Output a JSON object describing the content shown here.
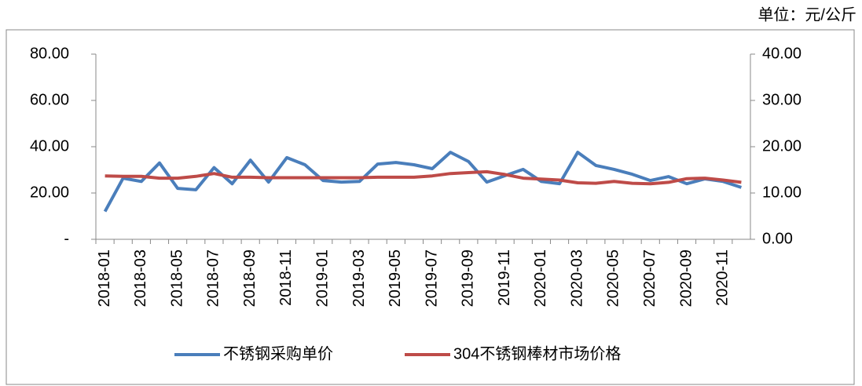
{
  "chart_data": {
    "type": "line",
    "unit_note": "单位：元/公斤",
    "categories": [
      "2018-01",
      null,
      "2018-03",
      null,
      "2018-05",
      null,
      "2018-07",
      null,
      "2018-09",
      null,
      "2018-11",
      null,
      "2019-01",
      null,
      "2019-03",
      null,
      "2019-05",
      null,
      "2019-07",
      null,
      "2019-09",
      null,
      "2019-11",
      null,
      "2020-01",
      null,
      "2020-03",
      null,
      "2020-05",
      null,
      "2020-07",
      null,
      "2020-09",
      null,
      "2020-11",
      null
    ],
    "series": [
      {
        "name": "不锈钢采购单价",
        "color": "#4a7ebb",
        "axis": "y",
        "values": [
          12,
          26.4,
          25,
          33,
          22,
          21.4,
          31,
          24,
          34.2,
          24.7,
          35.3,
          32.2,
          25.4,
          24.7,
          25,
          32.5,
          33.2,
          32.2,
          30.5,
          37.6,
          33.6,
          24.7,
          27.5,
          30.2,
          25,
          24,
          37.6,
          31.9,
          30.2,
          28.1,
          25.4,
          27.1,
          24,
          26.1,
          25,
          22.4
        ]
      },
      {
        "name": "304不锈钢棒材市场价格",
        "color": "#be4b48",
        "axis": "y2",
        "values": [
          13.7,
          13.6,
          13.6,
          13.2,
          13.2,
          13.6,
          14.2,
          13.4,
          13.4,
          13.3,
          13.3,
          13.3,
          13.3,
          13.3,
          13.3,
          13.4,
          13.4,
          13.4,
          13.7,
          14.2,
          14.4,
          14.6,
          14.0,
          13.2,
          13.0,
          12.8,
          12.2,
          12.1,
          12.5,
          12.1,
          12.0,
          12.3,
          13.1,
          13.2,
          12.8,
          12.3
        ]
      }
    ],
    "ylim": [
      0,
      80
    ],
    "yticks": [
      {
        "value": 0,
        "label": "-"
      },
      {
        "value": 20,
        "label": "20.00"
      },
      {
        "value": 40,
        "label": "40.00"
      },
      {
        "value": 60,
        "label": "60.00"
      },
      {
        "value": 80,
        "label": "80.00"
      }
    ],
    "y2lim": [
      0,
      40
    ],
    "y2ticks": [
      {
        "value": 0,
        "label": "0.00"
      },
      {
        "value": 10,
        "label": "10.00"
      },
      {
        "value": 20,
        "label": "20.00"
      },
      {
        "value": 30,
        "label": "30.00"
      },
      {
        "value": 40,
        "label": "40.00"
      }
    ],
    "legend": "bottom"
  }
}
